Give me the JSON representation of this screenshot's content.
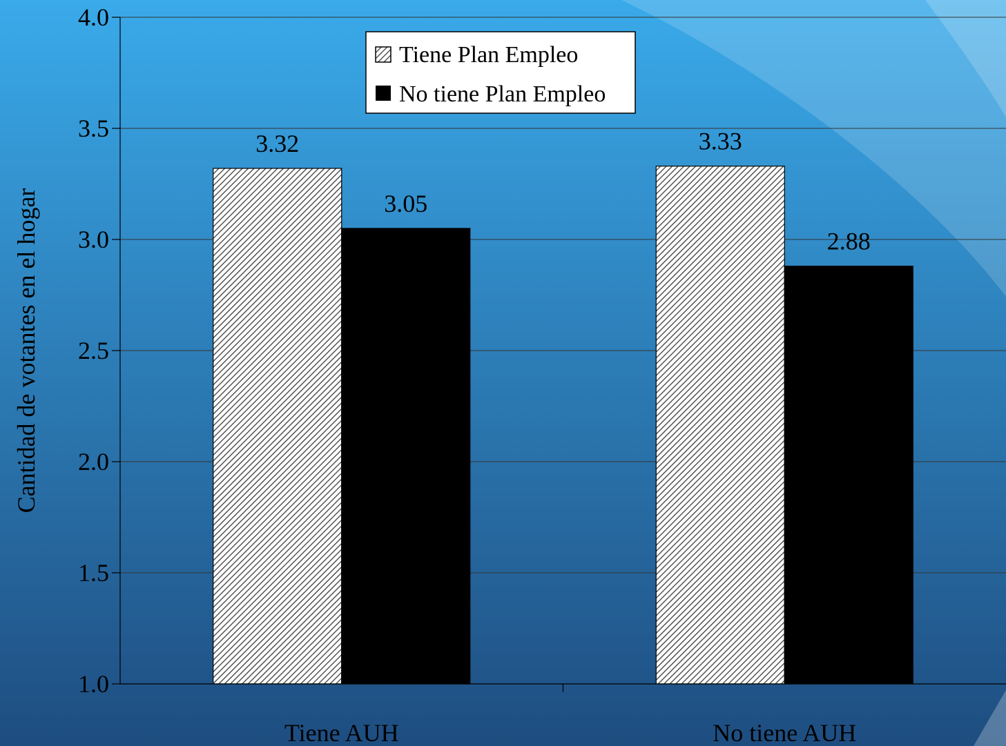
{
  "chart_data": {
    "type": "bar",
    "categories": [
      "Tiene AUH",
      "No tiene AUH"
    ],
    "series": [
      {
        "name": "Tiene Plan Empleo",
        "values": [
          3.32,
          3.33
        ],
        "pattern": "diagonal-hatch",
        "color": "#ffffff"
      },
      {
        "name": "No tiene Plan Empleo",
        "values": [
          3.05,
          2.88
        ],
        "color": "#000000"
      }
    ],
    "data_labels": [
      [
        "3.32",
        "3.33"
      ],
      [
        "3.05",
        "2.88"
      ]
    ],
    "ylabel": "Cantidad de votantes en el hogar",
    "xlabel": "",
    "ylim": [
      1.0,
      4.0
    ],
    "yticks": [
      1.0,
      1.5,
      2.0,
      2.5,
      3.0,
      3.5,
      4.0
    ],
    "ytick_labels": [
      "1.0",
      "1.5",
      "2.0",
      "2.5",
      "3.0",
      "3.5",
      "4.0"
    ],
    "grid": true,
    "legend_position": "top-center"
  },
  "theme": {
    "background_top": "#3aaaea",
    "background_bottom": "#1e4d80",
    "gridline_color": "#333333"
  }
}
